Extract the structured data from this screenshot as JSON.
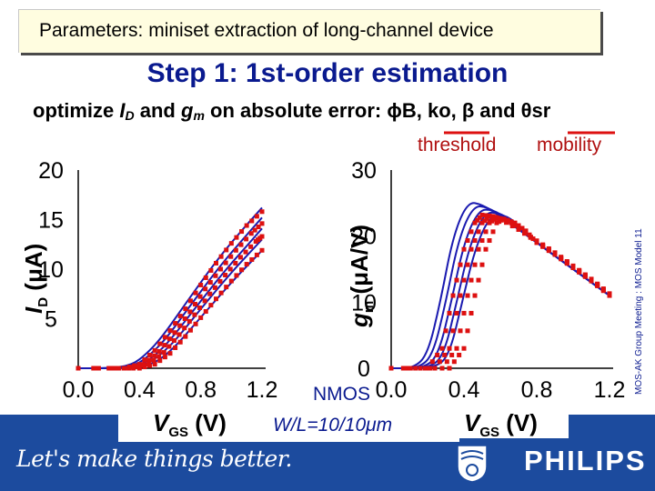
{
  "header": {
    "title": "Parameters: miniset extraction of long-channel device",
    "step_title": "Step 1: 1st-order estimation",
    "optimize_prefix": "optimize",
    "optimize_id": "I",
    "optimize_id_sub": "D",
    "optimize_and": "and",
    "optimize_gm": "g",
    "optimize_gm_sub": "m",
    "optimize_suffix": "on absolute error: ϕB, ko, β and θsr",
    "tag_threshold": "threshold",
    "tag_mobility": "mobility"
  },
  "side_note": "MOS-AK Group Meeting : MOS Model 11",
  "device": {
    "type": "NMOS",
    "geometry": "W/L=10/10μm"
  },
  "footer": {
    "slogan": "Let's make things better.",
    "brand": "PHILIPS"
  },
  "colors": {
    "model_curve": "#1a1ab0",
    "measured": "#dd1010",
    "title_blue": "#0a1a8f",
    "footer_bg": "#1c4b9e",
    "tag_red": "#b01010"
  },
  "chart_data": [
    {
      "type": "line",
      "xlabel": "VGS (V)",
      "ylabel": "ID (μA)",
      "xlim": [
        0.0,
        1.2
      ],
      "ylim": [
        0,
        20
      ],
      "xticks": [
        "0.0",
        "0.4",
        "0.8",
        "1.2"
      ],
      "yticks": [
        "5",
        "10",
        "15",
        "20"
      ],
      "grid": false,
      "series": [
        {
          "kind": "model",
          "values_x": [
            0.0,
            0.2,
            0.35,
            0.45,
            0.55,
            0.7,
            0.9,
            1.05,
            1.2
          ],
          "values_y": [
            0,
            0,
            0.3,
            1.5,
            3.2,
            6.5,
            10.8,
            13.6,
            16.2
          ]
        },
        {
          "kind": "model",
          "values_x": [
            0.0,
            0.23,
            0.38,
            0.48,
            0.58,
            0.73,
            0.93,
            1.08,
            1.2
          ],
          "values_y": [
            0,
            0,
            0.3,
            1.5,
            3.1,
            6.3,
            10.4,
            13.1,
            15.2
          ]
        },
        {
          "kind": "model",
          "values_x": [
            0.0,
            0.26,
            0.41,
            0.51,
            0.61,
            0.76,
            0.96,
            1.11,
            1.2
          ],
          "values_y": [
            0,
            0,
            0.3,
            1.4,
            3.0,
            6.0,
            9.9,
            12.5,
            14.1
          ]
        },
        {
          "kind": "model",
          "values_x": [
            0.0,
            0.29,
            0.44,
            0.54,
            0.64,
            0.79,
            0.99,
            1.14,
            1.2
          ],
          "values_y": [
            0,
            0,
            0.3,
            1.4,
            2.9,
            5.8,
            9.5,
            12.0,
            13.0
          ]
        },
        {
          "kind": "model",
          "values_x": [
            0.0,
            0.32,
            0.47,
            0.57,
            0.67,
            0.82,
            1.02,
            1.17,
            1.2
          ],
          "values_y": [
            0,
            0,
            0.3,
            1.3,
            2.8,
            5.5,
            9.0,
            11.4,
            11.9
          ]
        },
        {
          "kind": "measured",
          "values_x": [
            0.0,
            0.3,
            0.4,
            0.5,
            0.6,
            0.7,
            0.8,
            0.9,
            1.0,
            1.1,
            1.2
          ],
          "values_y": [
            0,
            0,
            0.4,
            1.8,
            3.8,
            6.0,
            8.4,
            10.6,
            12.6,
            14.4,
            15.8
          ]
        },
        {
          "kind": "measured",
          "values_x": [
            0.0,
            0.33,
            0.43,
            0.53,
            0.63,
            0.73,
            0.83,
            0.93,
            1.03,
            1.13,
            1.2
          ],
          "values_y": [
            0,
            0,
            0.4,
            1.7,
            3.6,
            5.7,
            8.0,
            10.0,
            11.9,
            13.6,
            14.6
          ]
        },
        {
          "kind": "measured",
          "values_x": [
            0.0,
            0.36,
            0.46,
            0.56,
            0.66,
            0.76,
            0.86,
            0.96,
            1.06,
            1.16,
            1.2
          ],
          "values_y": [
            0,
            0,
            0.4,
            1.6,
            3.4,
            5.4,
            7.5,
            9.4,
            11.2,
            12.8,
            13.3
          ]
        },
        {
          "kind": "measured",
          "values_x": [
            0.0,
            0.4,
            0.5,
            0.6,
            0.7,
            0.8,
            0.9,
            1.0,
            1.1,
            1.2
          ],
          "values_y": [
            0,
            0,
            0.4,
            1.5,
            3.2,
            5.1,
            7.0,
            8.8,
            10.5,
            11.9
          ]
        }
      ]
    },
    {
      "type": "line",
      "xlabel": "VGS (V)",
      "ylabel": "gm (μA/V)",
      "xlim": [
        0.0,
        1.2
      ],
      "ylim": [
        0,
        30
      ],
      "xticks": [
        "0.0",
        "0.4",
        "0.8",
        "1.2"
      ],
      "yticks": [
        "0",
        "10",
        "20",
        "30"
      ],
      "grid": false,
      "series": [
        {
          "kind": "model",
          "values_x": [
            0.0,
            0.12,
            0.2,
            0.27,
            0.34,
            0.42,
            0.5,
            0.6,
            0.8,
            1.0,
            1.2
          ],
          "values_y": [
            0,
            0,
            2,
            10,
            20,
            25.2,
            24.8,
            23.0,
            19.0,
            15.0,
            11.0
          ]
        },
        {
          "kind": "model",
          "values_x": [
            0.0,
            0.15,
            0.23,
            0.3,
            0.37,
            0.45,
            0.53,
            0.62,
            0.8,
            1.0,
            1.2
          ],
          "values_y": [
            0,
            0,
            2,
            10,
            19.5,
            24.6,
            24.4,
            22.8,
            19.0,
            15.0,
            11.0
          ]
        },
        {
          "kind": "model",
          "values_x": [
            0.0,
            0.18,
            0.26,
            0.33,
            0.4,
            0.48,
            0.56,
            0.64,
            0.8,
            1.0,
            1.2
          ],
          "values_y": [
            0,
            0,
            2,
            10,
            19.0,
            24.0,
            24.0,
            22.6,
            19.0,
            15.0,
            11.0
          ]
        },
        {
          "kind": "model",
          "values_x": [
            0.0,
            0.21,
            0.29,
            0.36,
            0.43,
            0.51,
            0.59,
            0.66,
            0.8,
            1.0,
            1.2
          ],
          "values_y": [
            0,
            0,
            2,
            10,
            18.5,
            23.5,
            23.6,
            22.4,
            19.0,
            15.0,
            11.0
          ]
        },
        {
          "kind": "model",
          "values_x": [
            0.0,
            0.24,
            0.32,
            0.39,
            0.46,
            0.54,
            0.62,
            0.68,
            0.8,
            1.0,
            1.2
          ],
          "values_y": [
            0,
            0,
            2,
            10,
            18.0,
            23.0,
            23.2,
            22.2,
            19.0,
            15.0,
            11.0
          ]
        },
        {
          "kind": "measured",
          "values_x": [
            0.0,
            0.2,
            0.28,
            0.34,
            0.4,
            0.46,
            0.5,
            0.56,
            0.6,
            0.7,
            0.8,
            0.9,
            1.0,
            1.1,
            1.2
          ],
          "values_y": [
            0,
            0,
            3,
            11,
            18,
            22,
            23.2,
            23.0,
            22.6,
            21.0,
            19.3,
            17.5,
            15.5,
            13.5,
            11.3
          ]
        },
        {
          "kind": "measured",
          "values_x": [
            0.0,
            0.24,
            0.32,
            0.38,
            0.44,
            0.5,
            0.54,
            0.6,
            0.7,
            0.8,
            0.9,
            1.0,
            1.1,
            1.2
          ],
          "values_y": [
            0,
            0,
            3,
            11,
            18,
            22,
            23.0,
            22.6,
            21.0,
            19.2,
            17.4,
            15.4,
            13.4,
            11.2
          ]
        },
        {
          "kind": "measured",
          "values_x": [
            0.0,
            0.28,
            0.36,
            0.42,
            0.48,
            0.54,
            0.58,
            0.64,
            0.7,
            0.8,
            0.9,
            1.0,
            1.1,
            1.2
          ],
          "values_y": [
            0,
            0,
            3,
            11,
            18,
            22,
            22.8,
            22.4,
            21.2,
            19.1,
            17.3,
            15.3,
            13.3,
            11.1
          ]
        },
        {
          "kind": "measured",
          "values_x": [
            0.0,
            0.32,
            0.4,
            0.46,
            0.52,
            0.58,
            0.62,
            0.68,
            0.74,
            0.8,
            0.9,
            1.0,
            1.1,
            1.2
          ],
          "values_y": [
            0,
            0,
            3,
            11,
            18,
            22,
            22.6,
            22.0,
            20.8,
            19.0,
            17.2,
            15.2,
            13.2,
            11.0
          ]
        }
      ]
    }
  ]
}
